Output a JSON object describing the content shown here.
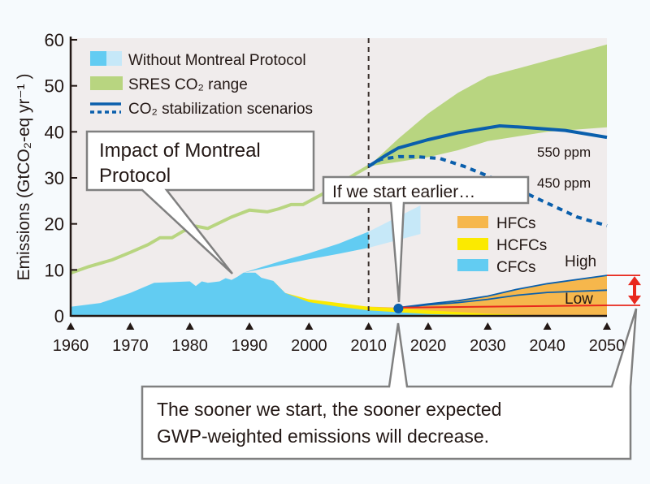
{
  "chart_data": {
    "type": "area",
    "ylabel": "Emissions (GtCO₂-eq yr⁻¹ )",
    "xlim": [
      1960,
      2050
    ],
    "ylim": [
      0,
      60
    ],
    "xticks": [
      "1960",
      "1970",
      "1980",
      "1990",
      "2000",
      "2010",
      "2020",
      "2030",
      "2040",
      "2050"
    ],
    "yticks": [
      "0",
      "10",
      "20",
      "30",
      "40",
      "50",
      "60"
    ],
    "grid": false,
    "legend_top": {
      "without_mp": "Without Montreal Protocol",
      "sres": "SRES CO₂ range",
      "stabilization": "CO₂ stabilization scenarios"
    },
    "legend_right": {
      "hfcs": "HFCs",
      "hcfcs": "HCFCs",
      "cfcs": "CFCs"
    },
    "labels": {
      "ppm550": "550 ppm",
      "ppm450": "450 ppm",
      "high": "High",
      "low": "Low"
    },
    "callouts": {
      "montreal": [
        "Impact of Montreal",
        "Protocol"
      ],
      "earlier": "If we start earlier…",
      "sooner": [
        "The sooner we start, the sooner expected",
        "GWP-weighted emissions will decrease."
      ]
    },
    "colors": {
      "sres": "#b8d580",
      "cfcs": "#62ccf2",
      "without_mp_light": "#c6e8f8",
      "hcfcs": "#fbea00",
      "hfcs": "#f6b74c",
      "stabilization": "#0a5fac",
      "red": "#e8281d",
      "plot_bg": "#f0ecec"
    },
    "series": {
      "sres_history": {
        "x": [
          1960,
          1963,
          1967,
          1970,
          1973,
          1975,
          1977,
          1979,
          1980,
          1981,
          1983,
          1987,
          1990,
          1993,
          1995,
          1997,
          1999,
          2003,
          2008,
          2010
        ],
        "y": [
          9.3,
          10.7,
          12.2,
          13.8,
          15.5,
          17,
          17,
          18.5,
          18.8,
          19.5,
          19,
          21.5,
          23,
          22.6,
          23.3,
          24.2,
          24.2,
          27,
          31,
          32.5
        ]
      },
      "sres_range": {
        "x": [
          2010,
          2015,
          2020,
          2025,
          2030,
          2040,
          2050
        ],
        "lower": [
          32.5,
          33.5,
          34.5,
          36,
          38,
          40,
          41
        ],
        "upper": [
          32.5,
          38.5,
          44,
          48.5,
          52,
          55.5,
          59
        ]
      },
      "ppm550": {
        "x": [
          2010,
          2013,
          2015,
          2020,
          2025,
          2032,
          2036,
          2043,
          2050
        ],
        "y": [
          32.5,
          35,
          36.5,
          38.3,
          39.8,
          41.3,
          41,
          40.3,
          38.8
        ]
      },
      "ppm450": {
        "x": [
          2010,
          2012,
          2015,
          2018,
          2022,
          2026,
          2030,
          2035,
          2040,
          2045,
          2050
        ],
        "y": [
          32.5,
          34,
          34.6,
          34.6,
          34.2,
          32.5,
          30.4,
          27.5,
          24.5,
          21.5,
          19.6
        ]
      },
      "without_mp": {
        "x": [
          1989,
          1995,
          2000,
          2005,
          2010,
          2018.7
        ],
        "lower": [
          9.4,
          11,
          12.3,
          13.5,
          14.8,
          17.8
        ],
        "upper": [
          9.4,
          11.8,
          13.6,
          15.7,
          18.3,
          24
        ],
        "projection_from": 2010
      },
      "cfcs": {
        "x": [
          1960,
          1965,
          1970,
          1974,
          1980,
          1981,
          1982,
          1983,
          1985,
          1986,
          1987,
          1988,
          1989,
          1991,
          1992,
          1994,
          1996,
          2000,
          2005,
          2010,
          2015,
          2020,
          2030,
          2050
        ],
        "y": [
          2,
          2.8,
          5,
          7.2,
          7.5,
          6.5,
          7.5,
          7.2,
          7.5,
          8.2,
          7.8,
          8.5,
          9.4,
          9.4,
          8.3,
          7.6,
          5,
          3,
          2,
          1.2,
          0.8,
          0.4,
          0.1,
          0
        ]
      },
      "hcfcs_cumulative": {
        "x": [
          1994,
          1996,
          2000,
          2005,
          2010,
          2015,
          2020,
          2030,
          2040,
          2050
        ],
        "y": [
          7.6,
          5,
          3.6,
          2.8,
          2.0,
          1.6,
          1.2,
          0.5,
          0.1,
          0
        ]
      },
      "hfcs_high": {
        "x": [
          2008,
          2015,
          2020,
          2025,
          2030,
          2035,
          2040,
          2050
        ],
        "y": [
          2.1,
          1.8,
          2.6,
          3.3,
          4.3,
          5.8,
          7,
          8.8
        ]
      },
      "hfcs_low": {
        "x": [
          2015,
          2020,
          2025,
          2030,
          2035,
          2040,
          2050
        ],
        "y": [
          1.8,
          2.4,
          2.9,
          3.6,
          4.5,
          5.1,
          5.6
        ]
      },
      "red_baseline": {
        "x": [
          2015,
          2050
        ],
        "y": [
          1.8,
          2.3
        ]
      },
      "start_point": {
        "x": 2015,
        "y": 1.6
      },
      "reference_year": 2010
    }
  }
}
